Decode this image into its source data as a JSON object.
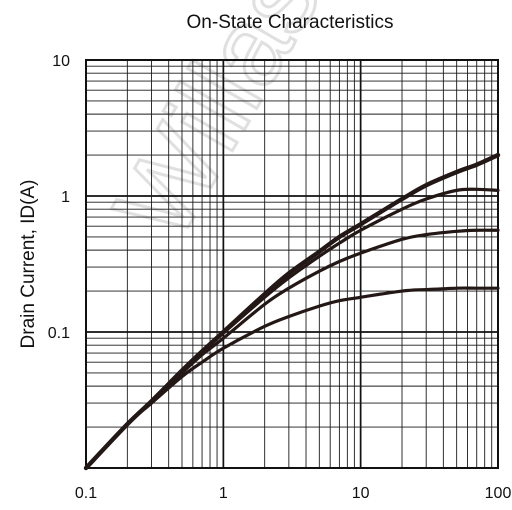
{
  "chart_data": {
    "type": "line",
    "title": "On-State Characteristics",
    "xlabel": "",
    "ylabel": "Drain Current, ID(A)",
    "x_scale": "log",
    "y_scale": "log",
    "xlim": [
      0.1,
      100
    ],
    "ylim": [
      0.01,
      10
    ],
    "grid": true,
    "x_ticks": [
      {
        "value": 0.1,
        "label": "0.1"
      },
      {
        "value": 1,
        "label": "1"
      },
      {
        "value": 10,
        "label": "10"
      },
      {
        "value": 100,
        "label": "100"
      }
    ],
    "y_ticks": [
      {
        "value": 10,
        "label": "10"
      },
      {
        "value": 1,
        "label": "1"
      },
      {
        "value": 0.1,
        "label": "0.1"
      }
    ],
    "watermark": "Willas",
    "series": [
      {
        "x": [
          0.1,
          0.2,
          0.3,
          0.5,
          0.7,
          1,
          2,
          3,
          5,
          7,
          10,
          20,
          30,
          50,
          70,
          100
        ],
        "y": [
          0.01,
          0.021,
          0.031,
          0.052,
          0.072,
          0.1,
          0.19,
          0.27,
          0.39,
          0.5,
          0.62,
          0.95,
          1.2,
          1.5,
          1.7,
          2.0
        ]
      },
      {
        "x": [
          0.1,
          0.2,
          0.3,
          0.5,
          0.7,
          1,
          2,
          3,
          5,
          7,
          10,
          20,
          30,
          50,
          70,
          100
        ],
        "y": [
          0.01,
          0.021,
          0.031,
          0.052,
          0.071,
          0.098,
          0.18,
          0.25,
          0.36,
          0.45,
          0.56,
          0.8,
          0.95,
          1.1,
          1.12,
          1.1
        ]
      },
      {
        "x": [
          0.1,
          0.2,
          0.3,
          0.5,
          0.7,
          1,
          2,
          3,
          5,
          7,
          10,
          20,
          30,
          50,
          70,
          100
        ],
        "y": [
          0.01,
          0.021,
          0.031,
          0.05,
          0.068,
          0.09,
          0.16,
          0.21,
          0.28,
          0.33,
          0.38,
          0.48,
          0.52,
          0.55,
          0.56,
          0.56
        ]
      },
      {
        "x": [
          0.1,
          0.2,
          0.3,
          0.5,
          0.7,
          1,
          2,
          3,
          5,
          7,
          10,
          20,
          30,
          50,
          70,
          100
        ],
        "y": [
          0.01,
          0.021,
          0.03,
          0.047,
          0.06,
          0.076,
          0.11,
          0.13,
          0.155,
          0.17,
          0.18,
          0.2,
          0.205,
          0.21,
          0.21,
          0.21
        ]
      }
    ]
  }
}
